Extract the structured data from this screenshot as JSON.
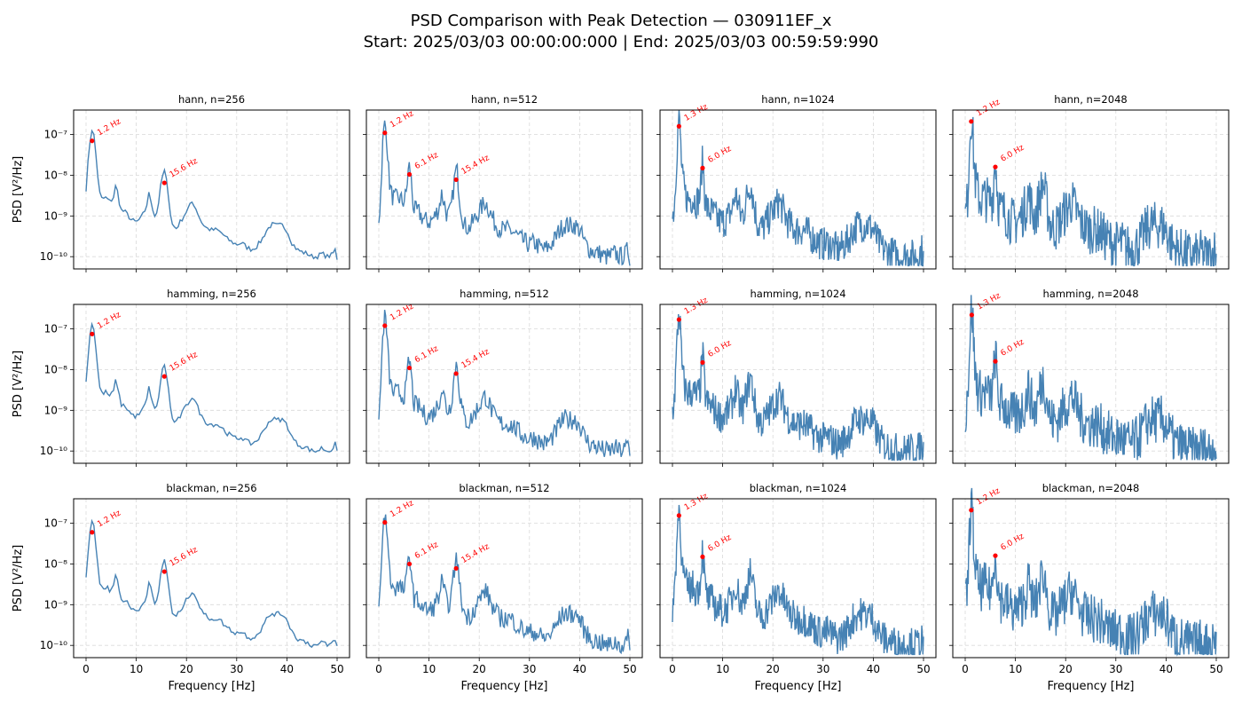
{
  "figure": {
    "title_line1": "PSD Comparison with Peak Detection — 030911EF_x",
    "title_line2": "Start: 2025/03/03 00:00:00:000 | End: 2025/03/03 00:59:59:990"
  },
  "chart_data": {
    "type": "line",
    "layout": {
      "rows": 3,
      "cols": 4
    },
    "xlabel": "Frequency [Hz]",
    "ylabel": "PSD [V²/Hz]",
    "xlim": [
      0,
      50
    ],
    "ylim": [
      5e-11,
      4e-07
    ],
    "xscale": "linear",
    "yscale": "log",
    "xticks": [
      0,
      10,
      20,
      30,
      40,
      50
    ],
    "yticks": [
      1e-10,
      1e-09,
      1e-08,
      1e-07
    ],
    "ytick_labels": [
      "10⁻¹⁰",
      "10⁻⁹",
      "10⁻⁸",
      "10⁻⁷"
    ],
    "grid": true,
    "colors": {
      "line": "#4682b4",
      "peak": "#ff0000",
      "grid": "#d9d9d9"
    },
    "panels": [
      {
        "title": "hann, n=256",
        "window": "hann",
        "n": 256,
        "peaks": [
          {
            "f": 1.2,
            "psd": 7e-08,
            "label": "1.2 Hz"
          },
          {
            "f": 15.6,
            "psd": 6.5e-09,
            "label": "15.6 Hz"
          }
        ]
      },
      {
        "title": "hann, n=512",
        "window": "hann",
        "n": 512,
        "peaks": [
          {
            "f": 1.2,
            "psd": 1.1e-07,
            "label": "1.2 Hz"
          },
          {
            "f": 6.1,
            "psd": 1.05e-08,
            "label": "6.1 Hz"
          },
          {
            "f": 15.4,
            "psd": 7.8e-09,
            "label": "15.4 Hz"
          }
        ]
      },
      {
        "title": "hann, n=1024",
        "window": "hann",
        "n": 1024,
        "peaks": [
          {
            "f": 1.3,
            "psd": 1.6e-07,
            "label": "1.3 Hz"
          },
          {
            "f": 6.0,
            "psd": 1.5e-08,
            "label": "6.0 Hz"
          }
        ]
      },
      {
        "title": "hann, n=2048",
        "window": "hann",
        "n": 2048,
        "peaks": [
          {
            "f": 1.2,
            "psd": 2.1e-07,
            "label": "1.2 Hz"
          },
          {
            "f": 6.0,
            "psd": 1.6e-08,
            "label": "6.0 Hz"
          }
        ]
      },
      {
        "title": "hamming, n=256",
        "window": "hamming",
        "n": 256,
        "peaks": [
          {
            "f": 1.2,
            "psd": 7.5e-08,
            "label": "1.2 Hz"
          },
          {
            "f": 15.6,
            "psd": 6.8e-09,
            "label": "15.6 Hz"
          }
        ]
      },
      {
        "title": "hamming, n=512",
        "window": "hamming",
        "n": 512,
        "peaks": [
          {
            "f": 1.2,
            "psd": 1.2e-07,
            "label": "1.2 Hz"
          },
          {
            "f": 6.1,
            "psd": 1.1e-08,
            "label": "6.1 Hz"
          },
          {
            "f": 15.4,
            "psd": 8e-09,
            "label": "15.4 Hz"
          }
        ]
      },
      {
        "title": "hamming, n=1024",
        "window": "hamming",
        "n": 1024,
        "peaks": [
          {
            "f": 1.3,
            "psd": 1.7e-07,
            "label": "1.3 Hz"
          },
          {
            "f": 6.0,
            "psd": 1.5e-08,
            "label": "6.0 Hz"
          }
        ]
      },
      {
        "title": "hamming, n=2048",
        "window": "hamming",
        "n": 2048,
        "peaks": [
          {
            "f": 1.3,
            "psd": 2.2e-07,
            "label": "1.3 Hz"
          },
          {
            "f": 6.0,
            "psd": 1.6e-08,
            "label": "6.0 Hz"
          }
        ]
      },
      {
        "title": "blackman, n=256",
        "window": "blackman",
        "n": 256,
        "peaks": [
          {
            "f": 1.2,
            "psd": 6e-08,
            "label": "1.2 Hz"
          },
          {
            "f": 15.6,
            "psd": 6.5e-09,
            "label": "15.6 Hz"
          }
        ]
      },
      {
        "title": "blackman, n=512",
        "window": "blackman",
        "n": 512,
        "peaks": [
          {
            "f": 1.2,
            "psd": 1.05e-07,
            "label": "1.2 Hz"
          },
          {
            "f": 6.1,
            "psd": 1e-08,
            "label": "6.1 Hz"
          },
          {
            "f": 15.4,
            "psd": 7.8e-09,
            "label": "15.4 Hz"
          }
        ]
      },
      {
        "title": "blackman, n=1024",
        "window": "blackman",
        "n": 1024,
        "peaks": [
          {
            "f": 1.3,
            "psd": 1.55e-07,
            "label": "1.3 Hz"
          },
          {
            "f": 6.0,
            "psd": 1.5e-08,
            "label": "6.0 Hz"
          }
        ]
      },
      {
        "title": "blackman, n=2048",
        "window": "blackman",
        "n": 2048,
        "peaks": [
          {
            "f": 1.2,
            "psd": 2.1e-07,
            "label": "1.2 Hz"
          },
          {
            "f": 6.0,
            "psd": 1.6e-08,
            "label": "6.0 Hz"
          }
        ]
      }
    ],
    "base_spectrum": [
      [
        0.0,
        9e-10
      ],
      [
        0.4,
        2e-09
      ],
      [
        0.8,
        2e-08
      ],
      [
        1.2,
        7e-08
      ],
      [
        1.6,
        4e-08
      ],
      [
        2.0,
        8e-09
      ],
      [
        2.5,
        3.5e-09
      ],
      [
        3.0,
        2.6e-09
      ],
      [
        4.0,
        2.8e-09
      ],
      [
        4.8,
        2.2e-09
      ],
      [
        5.5,
        3e-09
      ],
      [
        6.0,
        6.5e-09
      ],
      [
        6.5,
        2.5e-09
      ],
      [
        7.0,
        1.4e-09
      ],
      [
        8.0,
        1.2e-09
      ],
      [
        9.0,
        8e-10
      ],
      [
        10.0,
        7e-10
      ],
      [
        11.0,
        9e-10
      ],
      [
        12.0,
        1.6e-09
      ],
      [
        12.5,
        3.5e-09
      ],
      [
        13.0,
        2.2e-09
      ],
      [
        13.6,
        1e-09
      ],
      [
        14.2,
        1.2e-09
      ],
      [
        14.8,
        3e-09
      ],
      [
        15.6,
        6.5e-09
      ],
      [
        16.2,
        2e-09
      ],
      [
        17.0,
        6e-10
      ],
      [
        18.0,
        5e-10
      ],
      [
        19.0,
        8e-10
      ],
      [
        20.0,
        1.3e-09
      ],
      [
        21.2,
        2.3e-09
      ],
      [
        22.0,
        1.4e-09
      ],
      [
        23.0,
        7e-10
      ],
      [
        24.0,
        5e-10
      ],
      [
        25.0,
        4.5e-10
      ],
      [
        26.0,
        4.6e-10
      ],
      [
        27.0,
        3.8e-10
      ],
      [
        28.0,
        2.8e-10
      ],
      [
        29.0,
        2.3e-10
      ],
      [
        30.0,
        2e-10
      ],
      [
        31.0,
        2.2e-10
      ],
      [
        32.0,
        1.7e-10
      ],
      [
        33.0,
        1.5e-10
      ],
      [
        34.0,
        1.8e-10
      ],
      [
        35.0,
        2.6e-10
      ],
      [
        36.0,
        4.5e-10
      ],
      [
        37.0,
        6.2e-10
      ],
      [
        38.0,
        5.8e-10
      ],
      [
        39.0,
        6e-10
      ],
      [
        40.0,
        4.5e-10
      ],
      [
        41.0,
        2.2e-10
      ],
      [
        42.0,
        1.5e-10
      ],
      [
        43.0,
        1.3e-10
      ],
      [
        44.0,
        1.2e-10
      ],
      [
        45.0,
        1e-10
      ],
      [
        46.0,
        1e-10
      ],
      [
        47.0,
        1.2e-10
      ],
      [
        48.0,
        1e-10
      ],
      [
        49.0,
        1.1e-10
      ],
      [
        49.6,
        1.5e-10
      ],
      [
        50.0,
        9e-11
      ]
    ]
  }
}
